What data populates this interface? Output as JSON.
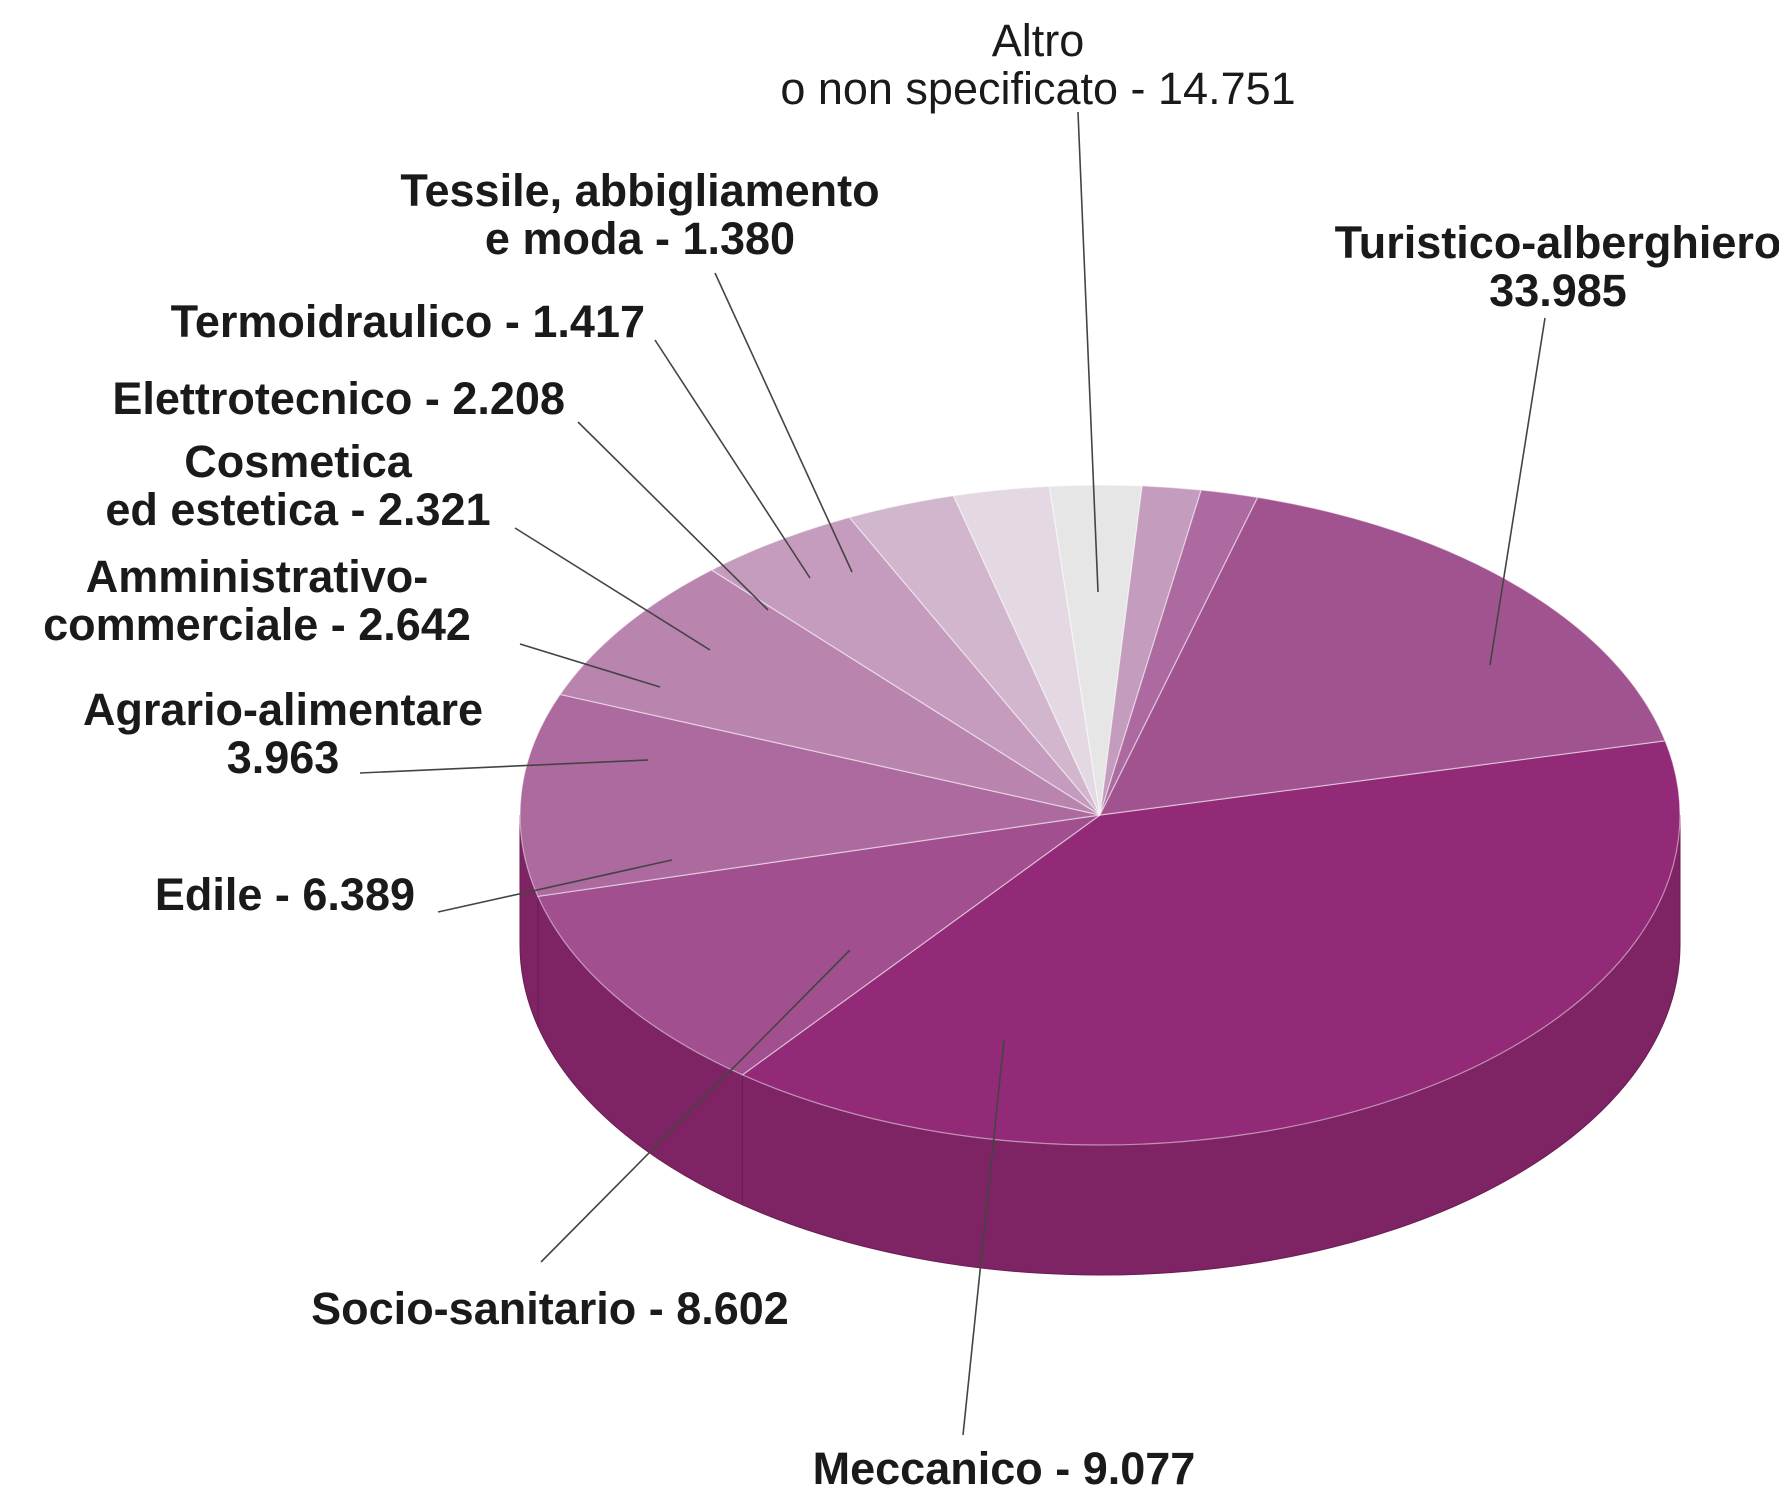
{
  "chart_data": {
    "type": "pie",
    "title": "",
    "slices": [
      {
        "name": "Turistico-alberghiero",
        "value": 33985,
        "label_lines": [
          "Turistico-alberghiero",
          "33.985"
        ],
        "color": "#932a78",
        "label_style": "bold"
      },
      {
        "name": "Meccanico",
        "value": 9077,
        "label_lines": [
          "Meccanico - 9.077"
        ],
        "color": "#a24f8f",
        "label_style": "bold"
      },
      {
        "name": "Socio-sanitario",
        "value": 8602,
        "label_lines": [
          "Socio-sanitario - 8.602"
        ],
        "color": "#ad6a9f",
        "label_style": "bold"
      },
      {
        "name": "Edile",
        "value": 6389,
        "label_lines": [
          "Edile - 6.389"
        ],
        "color": "#b985af",
        "label_style": "bold"
      },
      {
        "name": "Agrario-alimentare",
        "value": 3963,
        "label_lines": [
          "Agrario-alimentare",
          "3.963"
        ],
        "color": "#c59cbe",
        "label_style": "bold"
      },
      {
        "name": "Amministrativo-commerciale",
        "value": 2642,
        "label_lines": [
          "Amministrativo-",
          "commerciale - 2.642"
        ],
        "color": "#d2b6cd",
        "label_style": "bold"
      },
      {
        "name": "Cosmetica ed estetica",
        "value": 2321,
        "label_lines": [
          "Cosmetica",
          "ed estetica - 2.321"
        ],
        "color": "#e4d8e2",
        "label_style": "bold"
      },
      {
        "name": "Elettrotecnico",
        "value": 2208,
        "label_lines": [
          "Elettrotecnico - 2.208"
        ],
        "color": "#e6e6e6",
        "label_style": "bold"
      },
      {
        "name": "Termoidraulico",
        "value": 1417,
        "label_lines": [
          "Termoidraulico - 1.417"
        ],
        "color": "#c49cbd",
        "label_style": "bold"
      },
      {
        "name": "Tessile, abbigliamento e moda",
        "value": 1380,
        "label_lines": [
          "Tessile, abbigliamento",
          "e moda - 1.380"
        ],
        "color": "#ad6aa0",
        "label_style": "bold"
      },
      {
        "name": "Altro o non specificato",
        "value": 14751,
        "label_lines": [
          "Altro",
          "o non specificato - 14.751"
        ],
        "color": "#a0538f",
        "label_style": "regular"
      }
    ],
    "start_angle_deg": 347,
    "direction": "clockwise",
    "style": "3d",
    "side_color": "#7e2363",
    "side_color_dark": "#6a1c53",
    "leader_line_color": "#444444",
    "background": "#ffffff"
  }
}
